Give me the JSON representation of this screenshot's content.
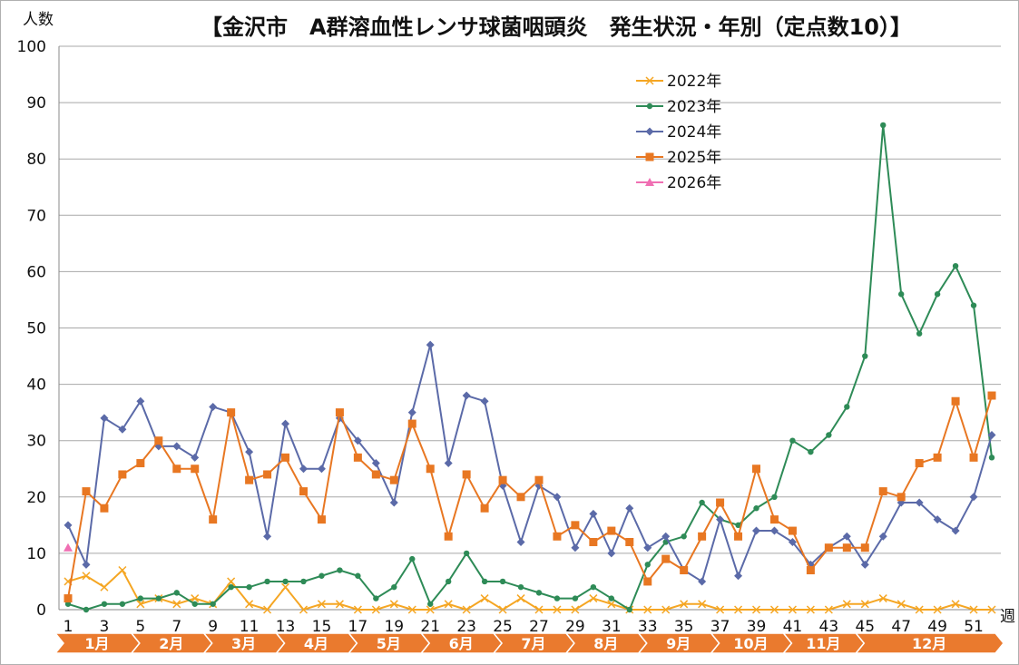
{
  "chart_data": {
    "type": "line",
    "title": "【金沢市　A群溶血性レンサ球菌咽頭炎　発生状況・年別（定点数10）】",
    "ylabel": "人数",
    "xlabel": "週",
    "ylim": [
      0,
      100
    ],
    "yticks": [
      0,
      10,
      20,
      30,
      40,
      50,
      60,
      70,
      80,
      90,
      100
    ],
    "xticks": [
      1,
      3,
      5,
      7,
      9,
      11,
      13,
      15,
      17,
      19,
      21,
      23,
      25,
      27,
      29,
      31,
      33,
      35,
      37,
      39,
      41,
      43,
      45,
      47,
      49,
      51
    ],
    "weeks": [
      1,
      2,
      3,
      4,
      5,
      6,
      7,
      8,
      9,
      10,
      11,
      12,
      13,
      14,
      15,
      16,
      17,
      18,
      19,
      20,
      21,
      22,
      23,
      24,
      25,
      26,
      27,
      28,
      29,
      30,
      31,
      32,
      33,
      34,
      35,
      36,
      37,
      38,
      39,
      40,
      41,
      42,
      43,
      44,
      45,
      46,
      47,
      48,
      49,
      50,
      51,
      52
    ],
    "months": [
      {
        "label": "1月",
        "start": 1,
        "end": 5
      },
      {
        "label": "2月",
        "start": 5,
        "end": 9
      },
      {
        "label": "3月",
        "start": 9,
        "end": 13
      },
      {
        "label": "4月",
        "start": 13,
        "end": 17
      },
      {
        "label": "5月",
        "start": 17,
        "end": 21
      },
      {
        "label": "6月",
        "start": 21,
        "end": 25
      },
      {
        "label": "7月",
        "start": 25,
        "end": 29
      },
      {
        "label": "8月",
        "start": 29,
        "end": 33
      },
      {
        "label": "9月",
        "start": 33,
        "end": 37
      },
      {
        "label": "10月",
        "start": 37,
        "end": 41
      },
      {
        "label": "11月",
        "start": 41,
        "end": 45
      },
      {
        "label": "12月",
        "start": 45,
        "end": 53
      }
    ],
    "grid": true,
    "legend_position": "top-right",
    "series": [
      {
        "name": "2022年",
        "color": "#f5a623",
        "marker": "x",
        "values": [
          5,
          6,
          4,
          7,
          1,
          2,
          1,
          2,
          1,
          5,
          1,
          0,
          4,
          0,
          1,
          1,
          0,
          0,
          1,
          0,
          0,
          1,
          0,
          2,
          0,
          2,
          0,
          0,
          0,
          2,
          1,
          0,
          0,
          0,
          1,
          1,
          0,
          0,
          0,
          0,
          0,
          0,
          0,
          1,
          1,
          2,
          1,
          0,
          0,
          1,
          0,
          0
        ]
      },
      {
        "name": "2023年",
        "color": "#2e8b57",
        "marker": "circle",
        "values": [
          1,
          0,
          1,
          1,
          2,
          2,
          3,
          1,
          1,
          4,
          4,
          5,
          5,
          5,
          6,
          7,
          6,
          2,
          4,
          9,
          1,
          5,
          10,
          5,
          5,
          4,
          3,
          2,
          2,
          4,
          2,
          0,
          8,
          12,
          13,
          19,
          16,
          15,
          18,
          20,
          30,
          28,
          31,
          36,
          45,
          86,
          56,
          49,
          56,
          61,
          54,
          27
        ]
      },
      {
        "name": "2024年",
        "color": "#5b6aa8",
        "marker": "diamond",
        "values": [
          15,
          8,
          34,
          32,
          37,
          29,
          29,
          27,
          36,
          35,
          28,
          13,
          33,
          25,
          25,
          34,
          30,
          26,
          19,
          35,
          47,
          26,
          38,
          37,
          22,
          12,
          22,
          20,
          11,
          17,
          10,
          18,
          11,
          13,
          7,
          5,
          16,
          6,
          14,
          14,
          12,
          8,
          11,
          13,
          8,
          13,
          19,
          19,
          16,
          14,
          20,
          31
        ]
      },
      {
        "name": "2025年",
        "color": "#e87722",
        "marker": "square",
        "values": [
          2,
          21,
          18,
          24,
          26,
          30,
          25,
          25,
          16,
          35,
          23,
          24,
          27,
          21,
          16,
          35,
          27,
          24,
          23,
          33,
          25,
          13,
          24,
          18,
          23,
          20,
          23,
          13,
          15,
          12,
          14,
          12,
          5,
          9,
          7,
          13,
          19,
          13,
          25,
          16,
          14,
          7,
          11,
          11,
          11,
          21,
          20,
          26,
          27,
          37,
          27,
          38
        ]
      },
      {
        "name": "2026年",
        "color": "#f06fb3",
        "marker": "triangle",
        "values": [
          11
        ]
      }
    ]
  }
}
